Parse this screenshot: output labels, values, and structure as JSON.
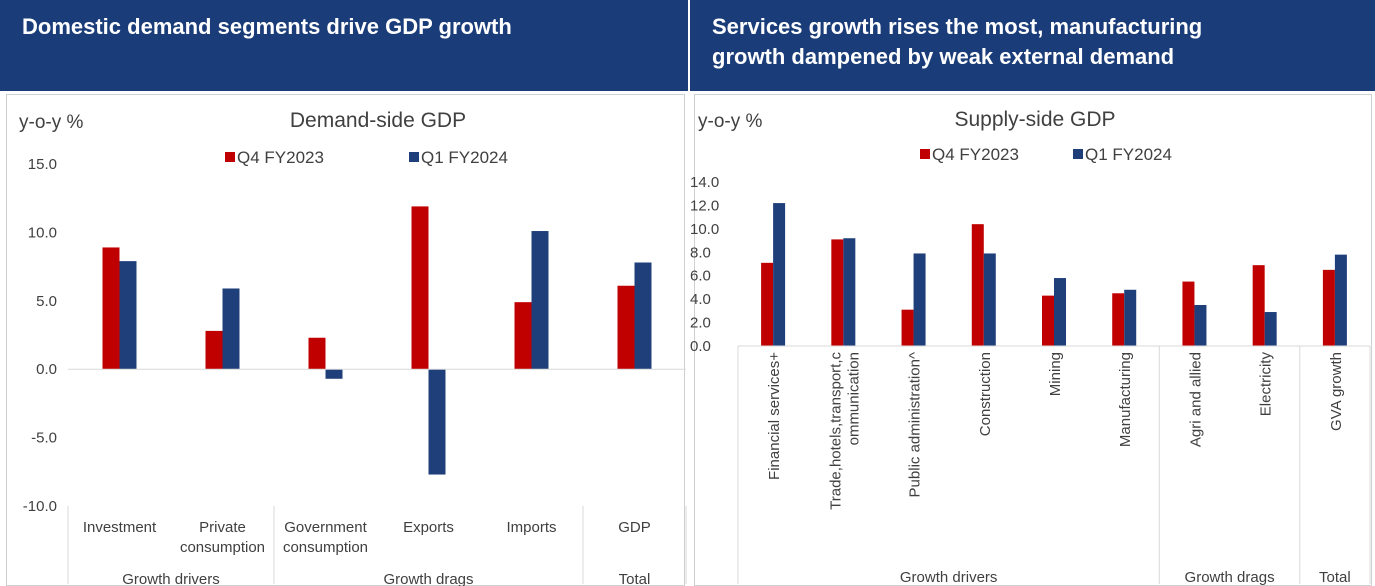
{
  "left": {
    "header_title": "Domestic demand segments drive GDP growth",
    "chart_data": {
      "type": "bar",
      "title": "Demand-side GDP",
      "ylabel": "y-o-y %",
      "ylim": [
        -10,
        15
      ],
      "yticks": [
        "15.0",
        "10.0",
        "5.0",
        "0.0",
        "-5.0",
        "-10.0"
      ],
      "categories": [
        "Investment",
        "Private consumption",
        "Government consumption",
        "Exports",
        "Imports",
        "GDP"
      ],
      "category_lines": [
        [
          "Investment"
        ],
        [
          "Private",
          "consumption"
        ],
        [
          "Government",
          "consumption"
        ],
        [
          "Exports"
        ],
        [
          "Imports"
        ],
        [
          "GDP"
        ]
      ],
      "groups": [
        {
          "label": "Growth drivers",
          "categories": [
            "Investment",
            "Private consumption"
          ]
        },
        {
          "label": "Growth drags",
          "categories": [
            "Government consumption",
            "Exports",
            "Imports"
          ]
        },
        {
          "label": "Total",
          "categories": [
            "GDP"
          ]
        }
      ],
      "series": [
        {
          "name": "Q4 FY2023",
          "color": "#c00000",
          "values": [
            8.9,
            2.8,
            2.3,
            11.9,
            4.9,
            6.1
          ]
        },
        {
          "name": "Q1 FY2024",
          "color": "#1f3f7a",
          "values": [
            7.9,
            5.9,
            -0.7,
            -7.7,
            10.1,
            7.8
          ]
        }
      ],
      "legend_position": "top-center"
    }
  },
  "right": {
    "header_title_line1": "Services growth rises the most, manufacturing",
    "header_title_line2": "growth dampened by weak external demand",
    "chart_data": {
      "type": "bar",
      "title": "Supply-side GDP",
      "ylabel": "y-o-y %",
      "ylim": [
        0,
        14
      ],
      "yticks": [
        "14.0",
        "12.0",
        "10.0",
        "8.0",
        "6.0",
        "4.0",
        "2.0",
        "0.0"
      ],
      "categories": [
        "Financial services+",
        "Trade,hotels,transport,communication",
        "Public administration^",
        "Construction",
        "Mining",
        "Manufacturing",
        "Agri and allied",
        "Electricity",
        "GVA growth"
      ],
      "category_lines": [
        [
          "Financial services+"
        ],
        [
          "Trade,hotels,transport,c",
          "ommunication"
        ],
        [
          "Public administration^"
        ],
        [
          "Construction"
        ],
        [
          "Mining"
        ],
        [
          "Manufacturing"
        ],
        [
          "Agri and allied"
        ],
        [
          "Electricity"
        ],
        [
          "GVA growth"
        ]
      ],
      "groups": [
        {
          "label": "Growth drivers",
          "categories": [
            "Financial services+",
            "Trade,hotels,transport,communication",
            "Public administration^",
            "Construction",
            "Mining",
            "Manufacturing"
          ]
        },
        {
          "label": "Growth drags",
          "categories": [
            "Agri and allied",
            "Electricity"
          ]
        },
        {
          "label": "Total",
          "categories": [
            "GVA growth"
          ]
        }
      ],
      "series": [
        {
          "name": "Q4 FY2023",
          "color": "#c00000",
          "values": [
            7.1,
            9.1,
            3.1,
            10.4,
            4.3,
            4.5,
            5.5,
            6.9,
            6.5
          ]
        },
        {
          "name": "Q1 FY2024",
          "color": "#1f3f7a",
          "values": [
            12.2,
            9.2,
            7.9,
            7.9,
            5.8,
            4.8,
            3.5,
            2.9,
            7.8
          ]
        }
      ],
      "legend_position": "top-center"
    }
  }
}
